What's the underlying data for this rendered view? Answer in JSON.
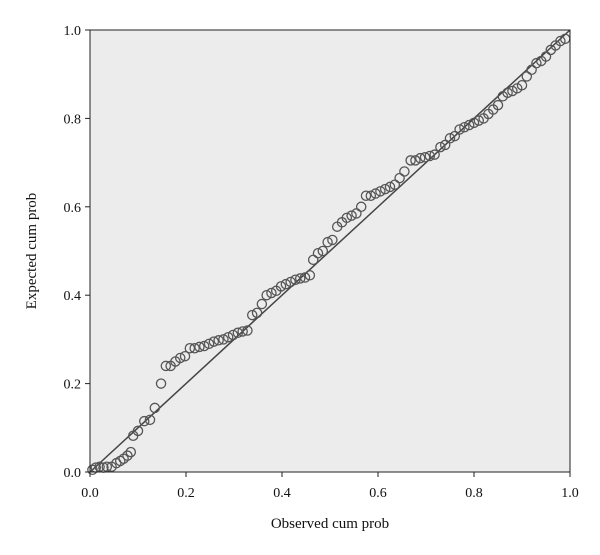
{
  "chart_data": {
    "type": "scatter",
    "title": "",
    "xlabel": "Observed cum prob",
    "ylabel": "Expected cum prob",
    "xlim": [
      0,
      1
    ],
    "ylim": [
      0,
      1
    ],
    "xticks": [
      "0.0",
      "0.2",
      "0.4",
      "0.6",
      "0.8",
      "1.0"
    ],
    "yticks": [
      "0.0",
      "0.2",
      "0.4",
      "0.6",
      "0.8",
      "1.0"
    ],
    "grid": false,
    "legend": "none",
    "reference_line": {
      "from": [
        0,
        0
      ],
      "to": [
        1,
        1
      ]
    },
    "colors": {
      "plot_background": "#ececec",
      "marker": "#555555",
      "line": "#444444",
      "frame": "#222222"
    },
    "points": [
      [
        0.005,
        0.005
      ],
      [
        0.012,
        0.01
      ],
      [
        0.02,
        0.012
      ],
      [
        0.028,
        0.01
      ],
      [
        0.035,
        0.012
      ],
      [
        0.045,
        0.012
      ],
      [
        0.055,
        0.02
      ],
      [
        0.063,
        0.025
      ],
      [
        0.07,
        0.03
      ],
      [
        0.078,
        0.037
      ],
      [
        0.085,
        0.045
      ],
      [
        0.09,
        0.082
      ],
      [
        0.1,
        0.093
      ],
      [
        0.113,
        0.115
      ],
      [
        0.125,
        0.118
      ],
      [
        0.135,
        0.145
      ],
      [
        0.148,
        0.2
      ],
      [
        0.158,
        0.24
      ],
      [
        0.168,
        0.24
      ],
      [
        0.178,
        0.25
      ],
      [
        0.188,
        0.258
      ],
      [
        0.198,
        0.262
      ],
      [
        0.208,
        0.28
      ],
      [
        0.218,
        0.28
      ],
      [
        0.228,
        0.283
      ],
      [
        0.238,
        0.285
      ],
      [
        0.248,
        0.29
      ],
      [
        0.258,
        0.295
      ],
      [
        0.268,
        0.298
      ],
      [
        0.278,
        0.3
      ],
      [
        0.288,
        0.305
      ],
      [
        0.298,
        0.31
      ],
      [
        0.308,
        0.315
      ],
      [
        0.318,
        0.318
      ],
      [
        0.328,
        0.32
      ],
      [
        0.338,
        0.355
      ],
      [
        0.348,
        0.36
      ],
      [
        0.358,
        0.38
      ],
      [
        0.368,
        0.4
      ],
      [
        0.378,
        0.405
      ],
      [
        0.388,
        0.41
      ],
      [
        0.398,
        0.42
      ],
      [
        0.408,
        0.425
      ],
      [
        0.418,
        0.43
      ],
      [
        0.428,
        0.435
      ],
      [
        0.438,
        0.438
      ],
      [
        0.448,
        0.44
      ],
      [
        0.458,
        0.445
      ],
      [
        0.465,
        0.48
      ],
      [
        0.475,
        0.495
      ],
      [
        0.485,
        0.5
      ],
      [
        0.495,
        0.52
      ],
      [
        0.505,
        0.525
      ],
      [
        0.515,
        0.555
      ],
      [
        0.525,
        0.565
      ],
      [
        0.535,
        0.575
      ],
      [
        0.545,
        0.58
      ],
      [
        0.555,
        0.585
      ],
      [
        0.565,
        0.6
      ],
      [
        0.575,
        0.625
      ],
      [
        0.585,
        0.625
      ],
      [
        0.595,
        0.63
      ],
      [
        0.605,
        0.635
      ],
      [
        0.615,
        0.64
      ],
      [
        0.625,
        0.645
      ],
      [
        0.635,
        0.65
      ],
      [
        0.645,
        0.665
      ],
      [
        0.655,
        0.68
      ],
      [
        0.668,
        0.705
      ],
      [
        0.678,
        0.705
      ],
      [
        0.688,
        0.71
      ],
      [
        0.698,
        0.712
      ],
      [
        0.708,
        0.715
      ],
      [
        0.718,
        0.718
      ],
      [
        0.73,
        0.735
      ],
      [
        0.74,
        0.74
      ],
      [
        0.75,
        0.755
      ],
      [
        0.76,
        0.76
      ],
      [
        0.77,
        0.775
      ],
      [
        0.78,
        0.78
      ],
      [
        0.79,
        0.785
      ],
      [
        0.8,
        0.79
      ],
      [
        0.81,
        0.795
      ],
      [
        0.82,
        0.8
      ],
      [
        0.83,
        0.81
      ],
      [
        0.84,
        0.82
      ],
      [
        0.85,
        0.83
      ],
      [
        0.86,
        0.85
      ],
      [
        0.87,
        0.858
      ],
      [
        0.88,
        0.862
      ],
      [
        0.89,
        0.868
      ],
      [
        0.9,
        0.875
      ],
      [
        0.91,
        0.895
      ],
      [
        0.92,
        0.91
      ],
      [
        0.93,
        0.925
      ],
      [
        0.94,
        0.93
      ],
      [
        0.95,
        0.94
      ],
      [
        0.96,
        0.955
      ],
      [
        0.97,
        0.965
      ],
      [
        0.98,
        0.975
      ],
      [
        0.99,
        0.98
      ]
    ]
  }
}
